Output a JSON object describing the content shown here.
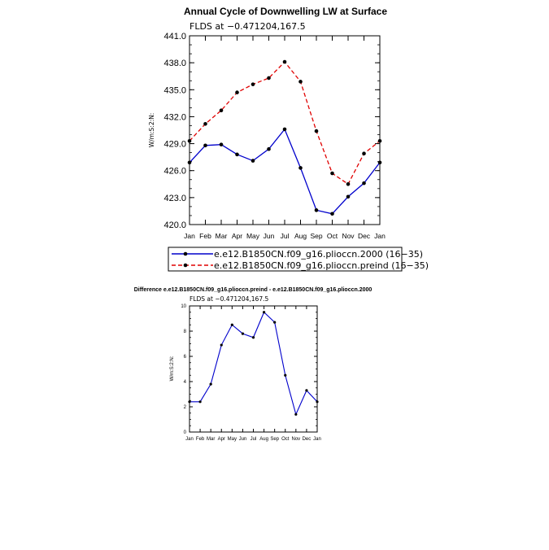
{
  "chart_data": [
    {
      "type": "line",
      "title": "Annual Cycle of Downwelling LW at Surface",
      "subtitle": "FLDS at −0.471204,167.5",
      "ylabel": "W/m:S:2:N:",
      "categories": [
        "Jan",
        "Feb",
        "Mar",
        "Apr",
        "May",
        "Jun",
        "Jul",
        "Aug",
        "Sep",
        "Oct",
        "Nov",
        "Dec",
        "Jan"
      ],
      "ylim": [
        420.0,
        441.0
      ],
      "yticks": [
        "420.0",
        "423.0",
        "426.0",
        "429.0",
        "432.0",
        "435.0",
        "438.0",
        "441.0"
      ],
      "series": [
        {
          "name": "e.e12.B1850CN.f09_g16.pliocсn.2000 (16−35)",
          "color": "#0000cc",
          "dash": "solid",
          "values": [
            426.9,
            428.8,
            428.9,
            427.8,
            427.1,
            428.4,
            430.6,
            426.3,
            421.6,
            421.2,
            423.1,
            424.6,
            426.9
          ]
        },
        {
          "name": "e.e12.B1850CN.f09_g16.pliocсn.preind (16−35)",
          "color": "#e00000",
          "dash": "dashed",
          "values": [
            429.3,
            431.2,
            432.7,
            434.7,
            435.6,
            436.3,
            438.1,
            435.9,
            430.4,
            425.7,
            424.5,
            427.9,
            429.3
          ]
        }
      ],
      "legend_position": "bottom"
    },
    {
      "type": "line",
      "title": "Difference e.e12.B1850CN.f09_g16.pliocсn.preind - e.e12.B1850CN.f09_g16.pliocсn.2000",
      "subtitle": "FLDS at −0.471204,167.5",
      "ylabel": "W/m:S:2:N:",
      "categories": [
        "Jan",
        "Feb",
        "Mar",
        "Apr",
        "May",
        "Jun",
        "Jul",
        "Aug",
        "Sep",
        "Oct",
        "Nov",
        "Dec",
        "Jan"
      ],
      "ylim": [
        0,
        10
      ],
      "yticks": [
        "0",
        "2",
        "4",
        "6",
        "8",
        "10"
      ],
      "series": [
        {
          "name": "",
          "color": "#0000cc",
          "dash": "solid",
          "values": [
            2.4,
            2.4,
            3.8,
            6.9,
            8.5,
            7.8,
            7.5,
            9.5,
            8.7,
            4.5,
            1.4,
            3.3,
            2.4
          ]
        }
      ]
    }
  ]
}
